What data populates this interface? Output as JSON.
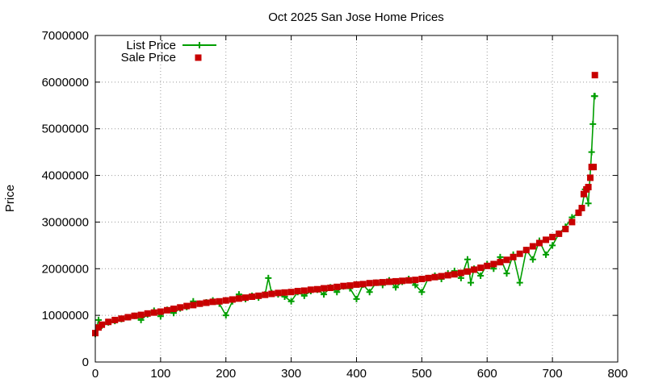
{
  "chart_data": {
    "type": "line",
    "title": "Oct 2025 San Jose Home Prices",
    "xlabel": "",
    "ylabel": "Price",
    "xlim": [
      0,
      800
    ],
    "ylim": [
      0,
      7000000
    ],
    "x_ticks": [
      0,
      100,
      200,
      300,
      400,
      500,
      600,
      700,
      800
    ],
    "y_ticks": [
      0,
      1000000,
      2000000,
      3000000,
      4000000,
      5000000,
      6000000,
      7000000
    ],
    "x_tick_labels": [
      "0",
      "100",
      "200",
      "300",
      "400",
      "500",
      "600",
      "700",
      "800"
    ],
    "y_tick_labels": [
      "0",
      "1000000",
      "2000000",
      "3000000",
      "4000000",
      "5000000",
      "6000000",
      "7000000"
    ],
    "grid": true,
    "legend_position": "top-left",
    "series": [
      {
        "name": "List Price",
        "style": "linespoints",
        "color": "#009e00",
        "marker": "plus",
        "x": [
          0,
          5,
          10,
          20,
          30,
          40,
          50,
          60,
          70,
          80,
          90,
          100,
          110,
          120,
          130,
          140,
          150,
          160,
          170,
          180,
          190,
          200,
          210,
          220,
          230,
          240,
          250,
          260,
          265,
          270,
          280,
          290,
          300,
          310,
          320,
          330,
          340,
          350,
          360,
          370,
          380,
          390,
          400,
          410,
          420,
          430,
          440,
          450,
          460,
          470,
          480,
          490,
          500,
          510,
          520,
          530,
          540,
          550,
          560,
          570,
          575,
          580,
          590,
          600,
          610,
          620,
          630,
          640,
          650,
          660,
          670,
          680,
          690,
          700,
          710,
          720,
          730,
          740,
          745,
          750,
          755,
          760,
          762,
          764,
          765
        ],
        "values": [
          600000,
          900000,
          780000,
          850000,
          880000,
          920000,
          960000,
          990000,
          900000,
          1020000,
          1100000,
          980000,
          1120000,
          1050000,
          1150000,
          1180000,
          1300000,
          1250000,
          1280000,
          1320000,
          1250000,
          1000000,
          1300000,
          1450000,
          1350000,
          1420000,
          1380000,
          1450000,
          1800000,
          1480000,
          1450000,
          1400000,
          1300000,
          1500000,
          1420000,
          1520000,
          1550000,
          1450000,
          1600000,
          1500000,
          1620000,
          1580000,
          1350000,
          1660000,
          1500000,
          1700000,
          1650000,
          1750000,
          1600000,
          1720000,
          1780000,
          1650000,
          1500000,
          1800000,
          1850000,
          1780000,
          1900000,
          1950000,
          1800000,
          2200000,
          1700000,
          2000000,
          1850000,
          2100000,
          2000000,
          2250000,
          1900000,
          2300000,
          1700000,
          2400000,
          2200000,
          2600000,
          2300000,
          2500000,
          2750000,
          2900000,
          3100000,
          3200000,
          3300000,
          3700000,
          3400000,
          4500000,
          5100000,
          5700000,
          5700000
        ]
      },
      {
        "name": "Sale Price",
        "style": "points",
        "color": "#c80000",
        "marker": "square",
        "x": [
          0,
          5,
          10,
          20,
          30,
          40,
          50,
          60,
          70,
          80,
          90,
          100,
          110,
          120,
          130,
          140,
          150,
          160,
          170,
          180,
          190,
          200,
          210,
          220,
          230,
          240,
          250,
          260,
          270,
          280,
          290,
          300,
          310,
          320,
          330,
          340,
          350,
          360,
          370,
          380,
          390,
          400,
          410,
          420,
          430,
          440,
          450,
          460,
          470,
          480,
          490,
          500,
          510,
          520,
          530,
          540,
          550,
          560,
          570,
          580,
          590,
          600,
          610,
          620,
          630,
          640,
          650,
          660,
          670,
          680,
          690,
          700,
          710,
          720,
          730,
          740,
          745,
          748,
          752,
          755,
          758,
          760,
          763,
          765
        ],
        "values": [
          620000,
          740000,
          800000,
          860000,
          900000,
          930000,
          960000,
          990000,
          1010000,
          1040000,
          1060000,
          1080000,
          1110000,
          1140000,
          1170000,
          1200000,
          1220000,
          1250000,
          1270000,
          1290000,
          1300000,
          1320000,
          1340000,
          1360000,
          1380000,
          1400000,
          1420000,
          1440000,
          1460000,
          1480000,
          1490000,
          1500000,
          1520000,
          1530000,
          1550000,
          1560000,
          1580000,
          1590000,
          1610000,
          1630000,
          1640000,
          1660000,
          1670000,
          1690000,
          1700000,
          1710000,
          1720000,
          1730000,
          1740000,
          1750000,
          1760000,
          1780000,
          1800000,
          1820000,
          1840000,
          1860000,
          1880000,
          1910000,
          1940000,
          1980000,
          2020000,
          2060000,
          2100000,
          2140000,
          2190000,
          2250000,
          2320000,
          2400000,
          2480000,
          2550000,
          2620000,
          2680000,
          2750000,
          2850000,
          3000000,
          3200000,
          3300000,
          3600000,
          3700000,
          3750000,
          3950000,
          4180000,
          4180000,
          6150000
        ]
      }
    ]
  }
}
